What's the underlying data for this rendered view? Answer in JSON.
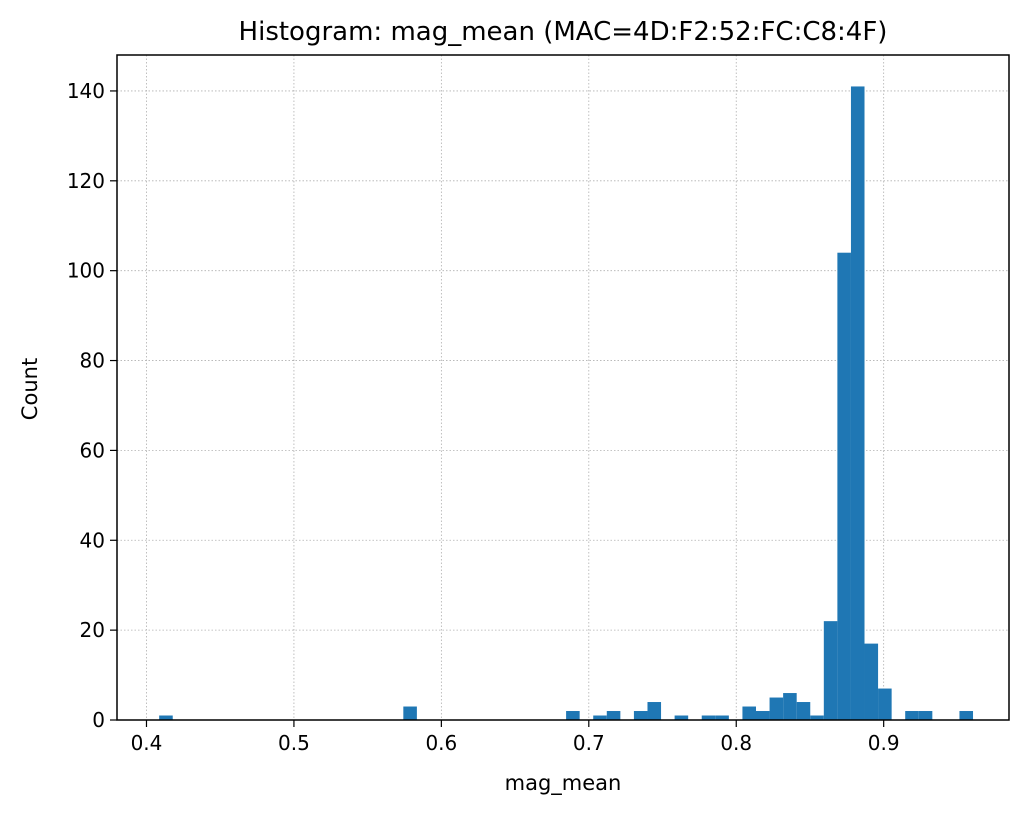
{
  "chart_data": {
    "type": "bar",
    "title": "Histogram: mag_mean (MAC=4D:F2:52:FC:C8:4F)",
    "xlabel": "mag_mean",
    "ylabel": "Count",
    "xlim": [
      0.38,
      0.985
    ],
    "ylim": [
      0,
      148
    ],
    "xticks": [
      0.4,
      0.5,
      0.6,
      0.7,
      0.8,
      0.9
    ],
    "xtick_labels": [
      "0.4",
      "0.5",
      "0.6",
      "0.7",
      "0.8",
      "0.9"
    ],
    "yticks": [
      0,
      20,
      40,
      60,
      80,
      100,
      120,
      140
    ],
    "ytick_labels": [
      "0",
      "20",
      "40",
      "60",
      "80",
      "100",
      "120",
      "140"
    ],
    "grid": true,
    "bar_color": "#1f77b4",
    "bin_width": 0.0092,
    "bins": [
      {
        "x": 0.4086,
        "count": 1
      },
      {
        "x": 0.5742,
        "count": 3
      },
      {
        "x": 0.6846,
        "count": 2
      },
      {
        "x": 0.703,
        "count": 1
      },
      {
        "x": 0.7122,
        "count": 2
      },
      {
        "x": 0.7306,
        "count": 2
      },
      {
        "x": 0.7398,
        "count": 4
      },
      {
        "x": 0.7582,
        "count": 1
      },
      {
        "x": 0.7766,
        "count": 1
      },
      {
        "x": 0.7858,
        "count": 1
      },
      {
        "x": 0.8042,
        "count": 3
      },
      {
        "x": 0.8134,
        "count": 2
      },
      {
        "x": 0.8226,
        "count": 5
      },
      {
        "x": 0.8318,
        "count": 6
      },
      {
        "x": 0.841,
        "count": 4
      },
      {
        "x": 0.8502,
        "count": 1
      },
      {
        "x": 0.8594,
        "count": 22
      },
      {
        "x": 0.8686,
        "count": 104
      },
      {
        "x": 0.8778,
        "count": 141
      },
      {
        "x": 0.887,
        "count": 17
      },
      {
        "x": 0.8962,
        "count": 7
      },
      {
        "x": 0.9146,
        "count": 2
      },
      {
        "x": 0.9238,
        "count": 2
      },
      {
        "x": 0.9514,
        "count": 2
      }
    ]
  }
}
